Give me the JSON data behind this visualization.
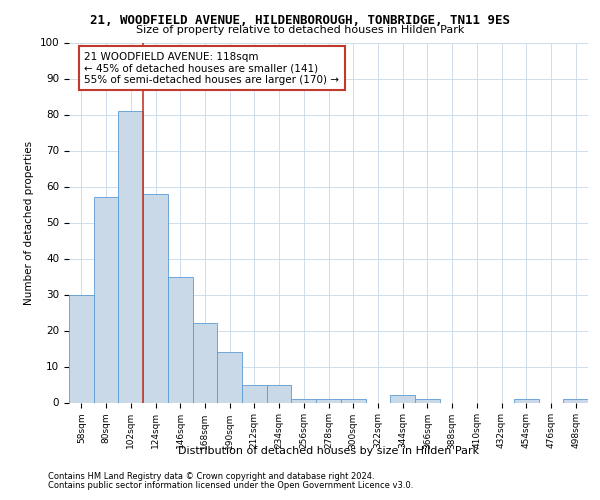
{
  "title1": "21, WOODFIELD AVENUE, HILDENBOROUGH, TONBRIDGE, TN11 9ES",
  "title2": "Size of property relative to detached houses in Hilden Park",
  "xlabel": "Distribution of detached houses by size in Hilden Park",
  "ylabel": "Number of detached properties",
  "categories": [
    "58sqm",
    "80sqm",
    "102sqm",
    "124sqm",
    "146sqm",
    "168sqm",
    "190sqm",
    "212sqm",
    "234sqm",
    "256sqm",
    "278sqm",
    "300sqm",
    "322sqm",
    "344sqm",
    "366sqm",
    "388sqm",
    "410sqm",
    "432sqm",
    "454sqm",
    "476sqm",
    "498sqm"
  ],
  "values": [
    30,
    57,
    81,
    58,
    35,
    22,
    14,
    5,
    5,
    1,
    1,
    1,
    0,
    2,
    1,
    0,
    0,
    0,
    1,
    0,
    1
  ],
  "bar_color": "#c9d9e8",
  "bar_edge_color": "#5b9bd5",
  "grid_color": "#c8d8e8",
  "annotation_text": "21 WOODFIELD AVENUE: 118sqm\n← 45% of detached houses are smaller (141)\n55% of semi-detached houses are larger (170) →",
  "vline_color": "#c0392b",
  "box_color": "#c0392b",
  "footnote1": "Contains HM Land Registry data © Crown copyright and database right 2024.",
  "footnote2": "Contains public sector information licensed under the Open Government Licence v3.0.",
  "ylim": [
    0,
    100
  ],
  "yticks": [
    0,
    10,
    20,
    30,
    40,
    50,
    60,
    70,
    80,
    90,
    100
  ]
}
